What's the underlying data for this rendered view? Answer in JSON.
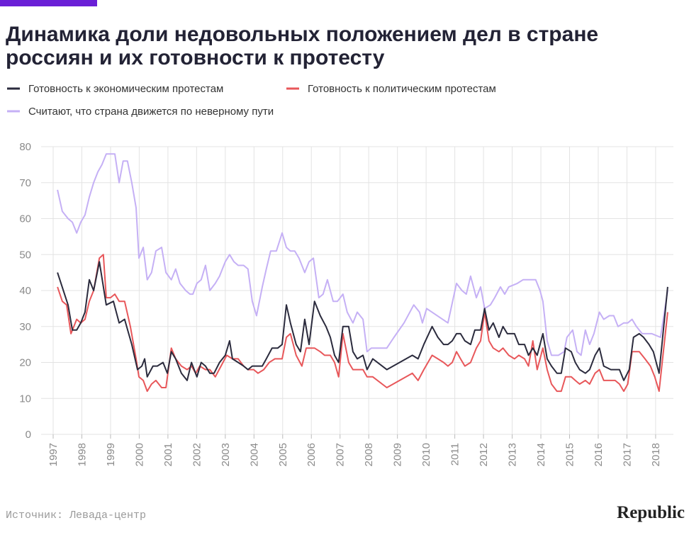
{
  "chart_data": {
    "type": "line",
    "title": [
      "Динамика доли недовольных положением дел в стране",
      "россиян и их готовности к протесту"
    ],
    "source": "Источник: Левада-центр",
    "brand": "Republic",
    "xlim": [
      1996.58,
      2018.62
    ],
    "xticks": [
      1997,
      1998,
      1999,
      2000,
      2001,
      2002,
      2003,
      2004,
      2005,
      2006,
      2007,
      2008,
      2009,
      2010,
      2011,
      2012,
      2013,
      2014,
      2015,
      2016,
      2017,
      2018
    ],
    "ylim": [
      0,
      80
    ],
    "yticks": [
      0,
      10,
      20,
      30,
      40,
      50,
      60,
      70,
      80
    ],
    "grid": true,
    "series": [
      {
        "name": "Готовность к экономическим протестам",
        "color": "#2b2b3d",
        "x": [
          1997.15,
          1997.52,
          1997.67,
          1997.82,
          1997.96,
          1998.11,
          1998.26,
          1998.41,
          1998.61,
          1998.85,
          1999.1,
          1999.3,
          1999.49,
          1999.74,
          1999.94,
          2000.09,
          2000.19,
          2000.28,
          2000.48,
          2000.63,
          2000.83,
          2000.98,
          2001.12,
          2001.27,
          2001.47,
          2001.67,
          2001.82,
          2002.01,
          2002.16,
          2002.31,
          2002.46,
          2002.61,
          2002.8,
          2003.0,
          2003.15,
          2003.25,
          2003.45,
          2003.64,
          2003.79,
          2003.94,
          2004.29,
          2004.43,
          2004.63,
          2004.83,
          2004.98,
          2005.13,
          2005.27,
          2005.47,
          2005.62,
          2005.77,
          2005.92,
          2006.11,
          2006.31,
          2006.51,
          2006.66,
          2006.81,
          2006.95,
          2007.1,
          2007.3,
          2007.45,
          2007.6,
          2007.8,
          2007.94,
          2008.14,
          2008.63,
          2009.52,
          2009.72,
          2009.92,
          2010.21,
          2010.41,
          2010.61,
          2010.76,
          2010.91,
          2011.06,
          2011.2,
          2011.35,
          2011.55,
          2011.7,
          2011.9,
          2012.04,
          2012.19,
          2012.34,
          2012.54,
          2012.68,
          2012.83,
          2013.08,
          2013.23,
          2013.43,
          2013.57,
          2013.72,
          2013.87,
          2014.07,
          2014.22,
          2014.37,
          2014.56,
          2014.71,
          2014.86,
          2015.06,
          2015.2,
          2015.35,
          2015.55,
          2015.7,
          2015.89,
          2016.04,
          2016.19,
          2016.44,
          2016.59,
          2016.74,
          2016.89,
          2017.08,
          2017.23,
          2017.43,
          2017.58,
          2017.77,
          2017.92,
          2018.12,
          2018.42
        ],
        "values": [
          45,
          36,
          29,
          29,
          31,
          34,
          43,
          40,
          48,
          36,
          37,
          31,
          32,
          25,
          18,
          19,
          21,
          16,
          19,
          19,
          20,
          17,
          23,
          21,
          17,
          15,
          20,
          16,
          20,
          19,
          17,
          17,
          20,
          22,
          26,
          21,
          20,
          19,
          18,
          19,
          19,
          21,
          24,
          24,
          25,
          36,
          31,
          25,
          23,
          32,
          25,
          37,
          33,
          30,
          27,
          22,
          20,
          30,
          30,
          23,
          21,
          22,
          18,
          21,
          18,
          22,
          21,
          25,
          30,
          27,
          25,
          25,
          26,
          28,
          28,
          26,
          25,
          29,
          29,
          35,
          29,
          31,
          27,
          30,
          28,
          28,
          25,
          25,
          22,
          24,
          22,
          28,
          21,
          19,
          17,
          17,
          24,
          23,
          20,
          18,
          17,
          18,
          22,
          24,
          19,
          18,
          18,
          18,
          15,
          18,
          27,
          28,
          27,
          25,
          23,
          17,
          41
        ]
      },
      {
        "name": "Готовность к политическим протестам",
        "color": "#e8575a",
        "x": [
          1997.15,
          1997.32,
          1997.47,
          1997.62,
          1997.82,
          1997.96,
          1998.11,
          1998.26,
          1998.41,
          1998.61,
          1998.75,
          1998.85,
          1999.0,
          1999.15,
          1999.3,
          1999.49,
          1999.69,
          1999.89,
          1999.99,
          2000.14,
          2000.28,
          2000.43,
          2000.58,
          2000.78,
          2000.93,
          2001.12,
          2001.27,
          2001.47,
          2001.67,
          2001.82,
          2001.97,
          2002.11,
          2002.31,
          2002.46,
          2002.65,
          2002.85,
          2003.05,
          2003.25,
          2003.45,
          2003.64,
          2003.79,
          2003.99,
          2004.14,
          2004.34,
          2004.53,
          2004.73,
          2004.98,
          2005.13,
          2005.27,
          2005.47,
          2005.67,
          2005.82,
          2005.97,
          2006.11,
          2006.31,
          2006.46,
          2006.66,
          2006.81,
          2006.95,
          2007.1,
          2007.3,
          2007.45,
          2007.8,
          2007.94,
          2008.14,
          2008.63,
          2009.52,
          2009.72,
          2009.92,
          2010.21,
          2010.41,
          2010.61,
          2010.76,
          2010.91,
          2011.06,
          2011.2,
          2011.35,
          2011.55,
          2011.75,
          2011.9,
          2012.04,
          2012.19,
          2012.34,
          2012.54,
          2012.68,
          2012.88,
          2013.08,
          2013.23,
          2013.43,
          2013.57,
          2013.72,
          2013.87,
          2014.07,
          2014.22,
          2014.37,
          2014.56,
          2014.71,
          2014.86,
          2015.06,
          2015.2,
          2015.35,
          2015.55,
          2015.7,
          2015.89,
          2016.04,
          2016.19,
          2016.59,
          2016.74,
          2016.89,
          2017.03,
          2017.18,
          2017.43,
          2017.63,
          2017.82,
          2017.97,
          2018.12,
          2018.42
        ],
        "values": [
          41,
          37,
          36,
          28,
          32,
          31,
          32,
          37,
          40,
          49,
          50,
          38,
          38,
          39,
          37,
          37,
          30,
          21,
          16,
          15,
          12,
          14,
          15,
          13,
          13,
          24,
          21,
          19,
          18,
          19,
          17,
          19,
          18,
          18,
          16,
          19,
          22,
          21,
          21,
          19,
          18,
          18,
          17,
          18,
          20,
          21,
          21,
          27,
          28,
          22,
          19,
          24,
          24,
          24,
          23,
          22,
          22,
          20,
          16,
          28,
          20,
          18,
          18,
          16,
          16,
          13,
          17,
          15,
          18,
          22,
          21,
          20,
          19,
          20,
          23,
          21,
          19,
          20,
          24,
          26,
          34,
          26,
          24,
          23,
          24,
          22,
          21,
          22,
          21,
          19,
          26,
          18,
          24,
          18,
          14,
          12,
          12,
          16,
          16,
          15,
          14,
          15,
          14,
          17,
          18,
          15,
          15,
          14,
          12,
          14,
          23,
          23,
          21,
          19,
          16,
          12,
          34
        ]
      },
      {
        "name": "Считают, что страна движется по неверному пути",
        "color": "#c5b0f5",
        "x": [
          1997.15,
          1997.32,
          1997.52,
          1997.67,
          1997.82,
          1997.96,
          1998.11,
          1998.26,
          1998.41,
          1998.56,
          1998.7,
          1998.85,
          1999.0,
          1999.15,
          1999.3,
          1999.44,
          1999.59,
          1999.74,
          1999.89,
          1999.99,
          2000.14,
          2000.28,
          2000.43,
          2000.58,
          2000.78,
          2000.93,
          2001.12,
          2001.27,
          2001.42,
          2001.62,
          2001.77,
          2001.87,
          2002.01,
          2002.16,
          2002.31,
          2002.46,
          2002.65,
          2002.8,
          2003.0,
          2003.15,
          2003.3,
          2003.45,
          2003.64,
          2003.79,
          2003.94,
          2004.09,
          2004.29,
          2004.43,
          2004.58,
          2004.78,
          2004.98,
          2005.13,
          2005.27,
          2005.42,
          2005.57,
          2005.77,
          2005.92,
          2006.07,
          2006.26,
          2006.41,
          2006.56,
          2006.76,
          2006.91,
          2007.1,
          2007.25,
          2007.45,
          2007.6,
          2007.8,
          2007.94,
          2008.09,
          2008.63,
          2008.88,
          2009.23,
          2009.57,
          2009.77,
          2009.87,
          2010.02,
          2010.76,
          2011.06,
          2011.25,
          2011.4,
          2011.55,
          2011.75,
          2011.9,
          2012.04,
          2012.24,
          2012.39,
          2012.59,
          2012.74,
          2012.88,
          2013.18,
          2013.38,
          2013.82,
          2013.97,
          2014.07,
          2014.22,
          2014.37,
          2014.61,
          2014.81,
          2014.91,
          2015.11,
          2015.26,
          2015.4,
          2015.55,
          2015.7,
          2015.85,
          2016.04,
          2016.19,
          2016.39,
          2016.54,
          2016.69,
          2016.89,
          2017.03,
          2017.18,
          2017.33,
          2017.53,
          2017.73,
          2017.87,
          2018.17,
          2018.42
        ],
        "values": [
          68,
          62,
          60,
          59,
          56,
          59,
          61,
          66,
          70,
          73,
          75,
          78,
          78,
          78,
          70,
          76,
          76,
          70,
          63,
          49,
          52,
          43,
          45,
          51,
          52,
          45,
          43,
          46,
          42,
          40,
          39,
          39,
          42,
          43,
          47,
          40,
          42,
          44,
          48,
          50,
          48,
          47,
          47,
          46,
          37,
          33,
          41,
          46,
          51,
          51,
          56,
          52,
          51,
          51,
          49,
          45,
          48,
          49,
          38,
          39,
          43,
          37,
          37,
          39,
          34,
          31,
          34,
          32,
          23,
          24,
          24,
          27,
          31,
          36,
          34,
          31,
          35,
          31,
          42,
          40,
          39,
          44,
          38,
          41,
          35,
          36,
          38,
          41,
          39,
          41,
          42,
          43,
          43,
          40,
          37,
          26,
          22,
          22,
          23,
          27,
          29,
          23,
          22,
          29,
          25,
          28,
          34,
          32,
          33,
          33,
          30,
          31,
          31,
          32,
          30,
          28,
          28,
          28,
          27,
          40
        ]
      }
    ]
  }
}
